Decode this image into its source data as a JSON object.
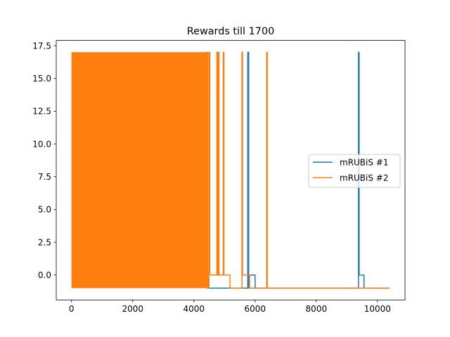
{
  "chart_data": {
    "type": "line",
    "title": "Rewards till 1700",
    "xlabel": "",
    "ylabel": "",
    "xlim": [
      -500,
      10900
    ],
    "ylim": [
      -1.9,
      17.9
    ],
    "x_ticks": [
      0,
      2000,
      4000,
      6000,
      8000,
      10000
    ],
    "x_tick_labels": [
      "0",
      "2000",
      "4000",
      "6000",
      "8000",
      "10000"
    ],
    "y_ticks": [
      0.0,
      2.5,
      5.0,
      7.5,
      10.0,
      12.5,
      15.0,
      17.5
    ],
    "y_tick_labels": [
      "0.0",
      "2.5",
      "5.0",
      "7.5",
      "10.0",
      "12.5",
      "15.0",
      "17.5"
    ],
    "grid": false,
    "legend_position": "center-right",
    "series": [
      {
        "name": "mRUBiS #1",
        "color": "#1f77b4",
        "dense_oscillation": {
          "x_start": 0,
          "x_end": 4420,
          "low": -1,
          "high": 17
        },
        "points": [
          [
            4420,
            -1
          ],
          [
            4450,
            -1
          ],
          [
            4450,
            -0.2
          ],
          [
            4470,
            -0.2
          ],
          [
            4470,
            -1
          ],
          [
            5760,
            -1
          ],
          [
            5760,
            17
          ],
          [
            5790,
            17
          ],
          [
            5790,
            -1
          ],
          [
            5800,
            -1
          ],
          [
            5800,
            0
          ],
          [
            6000,
            0
          ],
          [
            6000,
            -1
          ],
          [
            9380,
            -1
          ],
          [
            9380,
            17
          ],
          [
            9400,
            17
          ],
          [
            9400,
            0
          ],
          [
            9560,
            0
          ],
          [
            9560,
            -1
          ],
          [
            10400,
            -1
          ]
        ]
      },
      {
        "name": "mRUBiS #2",
        "color": "#ff7f0e",
        "dense_oscillation": {
          "x_start": 0,
          "x_end": 4430,
          "low": -1,
          "high": 17
        },
        "points": [
          [
            4430,
            -1
          ],
          [
            4430,
            17
          ],
          [
            4450,
            17
          ],
          [
            4450,
            -1
          ],
          [
            4490,
            -1
          ],
          [
            4490,
            17
          ],
          [
            4520,
            17
          ],
          [
            4520,
            0
          ],
          [
            4750,
            0
          ],
          [
            4750,
            17
          ],
          [
            4770,
            17
          ],
          [
            4770,
            0
          ],
          [
            4800,
            0
          ],
          [
            4800,
            17
          ],
          [
            4820,
            17
          ],
          [
            4820,
            0
          ],
          [
            4960,
            0
          ],
          [
            4960,
            17
          ],
          [
            4980,
            17
          ],
          [
            4980,
            0
          ],
          [
            5180,
            0
          ],
          [
            5180,
            -1
          ],
          [
            5570,
            -1
          ],
          [
            5570,
            17
          ],
          [
            5590,
            17
          ],
          [
            5590,
            0
          ],
          [
            5820,
            0
          ],
          [
            5820,
            -1
          ],
          [
            6380,
            -1
          ],
          [
            6380,
            17
          ],
          [
            6400,
            17
          ],
          [
            6400,
            -1
          ],
          [
            10400,
            -1
          ]
        ]
      }
    ]
  }
}
